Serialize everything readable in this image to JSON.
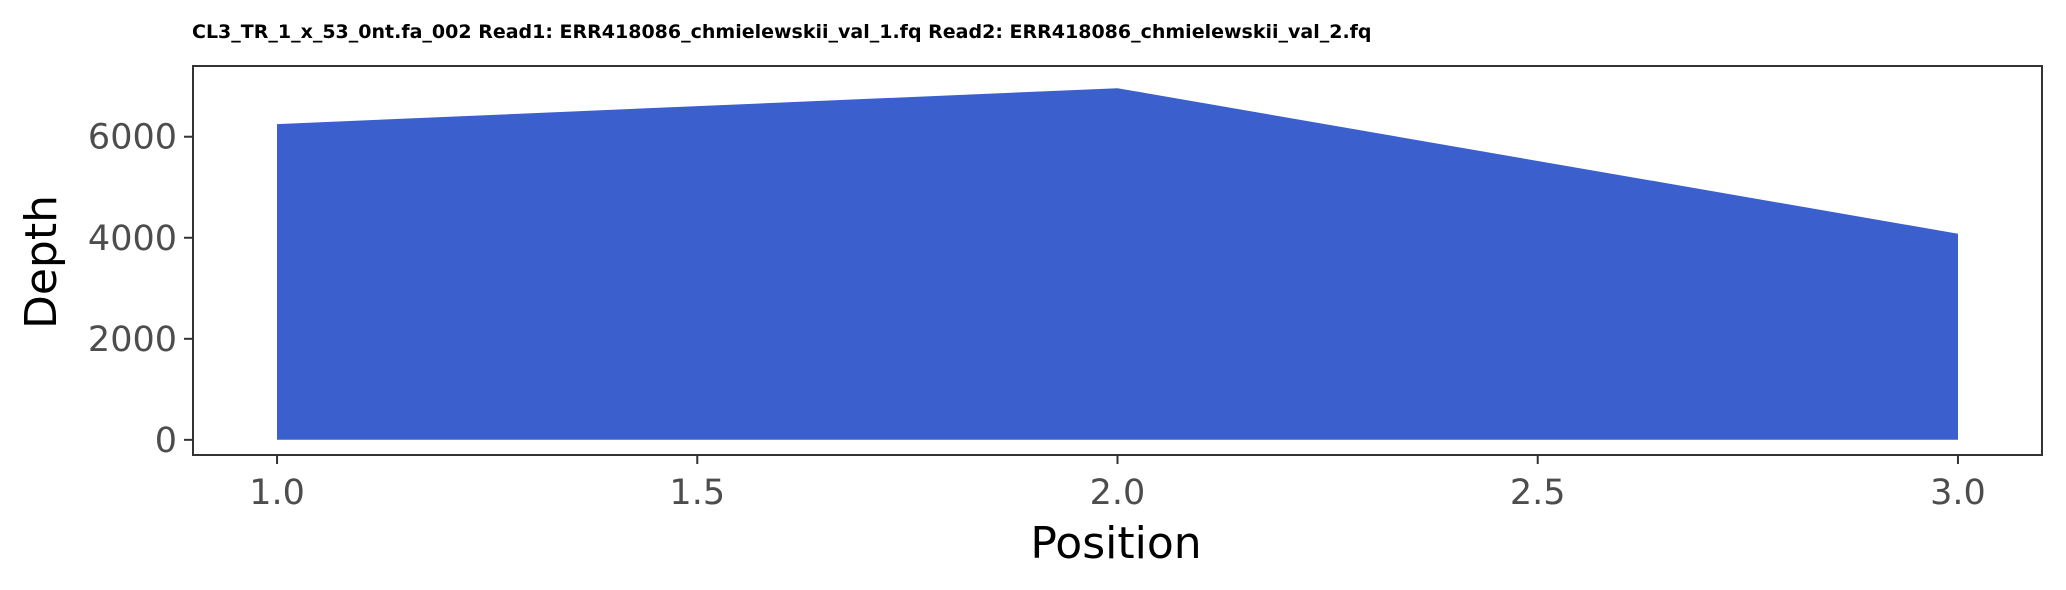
{
  "chart_data": {
    "type": "area",
    "title": "CL3_TR_1_x_53_0nt.fa_002 Read1: ERR418086_chmielewskii_val_1.fq Read2: ERR418086_chmielewskii_val_2.fq",
    "xlabel": "Position",
    "ylabel": "Depth",
    "x": [
      1.0,
      2.0,
      3.0
    ],
    "series": [
      {
        "values": [
          6250,
          6960,
          4080
        ]
      }
    ],
    "xlim": [
      0.9,
      3.1
    ],
    "ylim": [
      -300,
      7400
    ],
    "xticks": [
      1.0,
      1.5,
      2.0,
      2.5,
      3.0
    ],
    "xtick_labels": [
      "1.0",
      "1.5",
      "2.0",
      "2.5",
      "3.0"
    ],
    "yticks": [
      0,
      2000,
      4000,
      6000
    ],
    "ytick_labels": [
      "0",
      "2000",
      "4000",
      "6000"
    ],
    "grid": false,
    "legend": "none",
    "fill_color": "#3b5fcd",
    "panel_border_color": "#333333",
    "tick_color": "#333333",
    "tick_label_color": "#4d4d4d"
  }
}
